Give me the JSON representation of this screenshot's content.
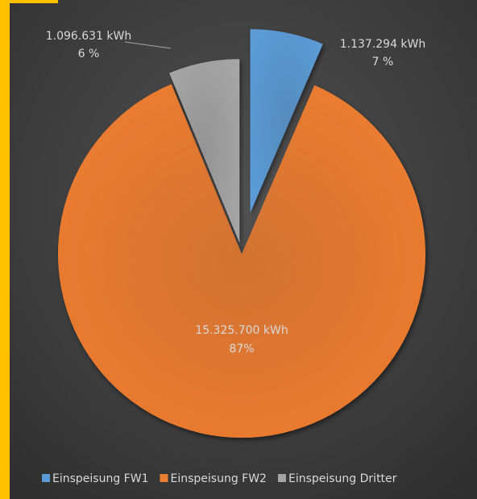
{
  "chart_data": {
    "type": "pie",
    "categories": [
      "Einspeisung FW1",
      "Einspeisung FW2",
      "Einspeisung Dritter"
    ],
    "values": [
      1137294,
      15325700,
      1096631
    ],
    "value_labels": [
      "1.137.294 kWh",
      "15.325.700 kWh",
      "1.096.631 kWh"
    ],
    "percent_labels": [
      "7 %",
      "87%",
      "6 %"
    ],
    "colors": [
      "#5b9bd5",
      "#ed7d31",
      "#a5a5a5"
    ],
    "legend": "bottom"
  }
}
